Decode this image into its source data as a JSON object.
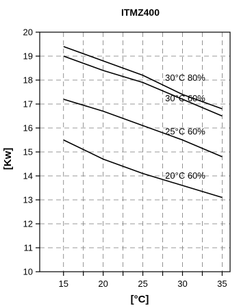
{
  "chart_data": {
    "type": "line",
    "title": "ITMZ400",
    "xlabel": "[°C]",
    "ylabel": "[Kw]",
    "xlim": [
      12,
      36
    ],
    "ylim": [
      10,
      20
    ],
    "xticks": [
      15,
      20,
      25,
      30,
      35
    ],
    "yticks": [
      10,
      11,
      12,
      13,
      14,
      15,
      16,
      17,
      18,
      19,
      20
    ],
    "grid": true,
    "series": [
      {
        "name": "30°C 80%",
        "x": [
          15,
          20,
          25,
          30,
          35
        ],
        "y": [
          19.4,
          18.8,
          18.2,
          17.4,
          16.8
        ]
      },
      {
        "name": "30°C 60%",
        "x": [
          15,
          20,
          25,
          30,
          35
        ],
        "y": [
          19.0,
          18.4,
          17.9,
          17.2,
          16.5
        ]
      },
      {
        "name": "25°C 60%",
        "x": [
          15,
          20,
          25,
          30,
          35
        ],
        "y": [
          17.2,
          16.7,
          16.1,
          15.5,
          14.8
        ]
      },
      {
        "name": "20°C 60%",
        "x": [
          15,
          20,
          25,
          30,
          35
        ],
        "y": [
          15.5,
          14.7,
          14.1,
          13.6,
          13.1
        ]
      }
    ]
  }
}
